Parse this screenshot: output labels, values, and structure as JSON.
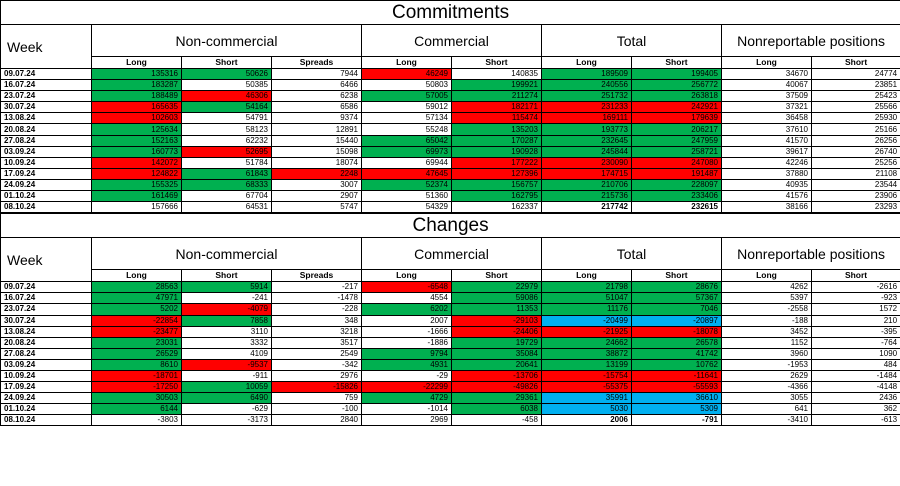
{
  "colors": {
    "green": "#00b050",
    "red": "#ff0000",
    "blue": "#00b0f0"
  },
  "commitments": {
    "title": "Commitments",
    "week_label": "Week",
    "groups": [
      "Non-commercial",
      "Commercial",
      "Total",
      "Nonreportable positions"
    ],
    "subheaders": [
      "Long",
      "Short",
      "Spreads",
      "Long",
      "Short",
      "Long",
      "Short",
      "Long",
      "Short"
    ],
    "rows": [
      {
        "week": "09.07.24",
        "v": [
          "135316",
          "50626",
          "7944",
          "46249",
          "140835",
          "189509",
          "199405",
          "34670",
          "24774"
        ],
        "hl": [
          "g",
          "g",
          "",
          "r",
          "",
          "g",
          "g",
          "",
          ""
        ]
      },
      {
        "week": "16.07.24",
        "v": [
          "183287",
          "50385",
          "6466",
          "50803",
          "199921",
          "240556",
          "256772",
          "40067",
          "23851"
        ],
        "hl": [
          "g",
          "",
          "",
          "",
          "g",
          "g",
          "g",
          "",
          ""
        ]
      },
      {
        "week": "23.07.24",
        "v": [
          "188489",
          "46306",
          "6238",
          "57005",
          "211274",
          "251732",
          "263818",
          "37509",
          "25423"
        ],
        "hl": [
          "g",
          "r",
          "",
          "g",
          "g",
          "g",
          "g",
          "",
          ""
        ]
      },
      {
        "week": "30.07.24",
        "v": [
          "165635",
          "54164",
          "6586",
          "59012",
          "182171",
          "231233",
          "242921",
          "37321",
          "25566"
        ],
        "hl": [
          "r",
          "g",
          "",
          "",
          "r",
          "r",
          "r",
          "",
          ""
        ]
      },
      {
        "week": "13.08.24",
        "v": [
          "102603",
          "54791",
          "9374",
          "57134",
          "115474",
          "169111",
          "179639",
          "36458",
          "25930"
        ],
        "hl": [
          "r",
          "",
          "",
          "",
          "r",
          "r",
          "r",
          "",
          ""
        ]
      },
      {
        "week": "20.08.24",
        "v": [
          "125634",
          "58123",
          "12891",
          "55248",
          "135203",
          "193773",
          "206217",
          "37610",
          "25166"
        ],
        "hl": [
          "g",
          "",
          "",
          "",
          "g",
          "g",
          "g",
          "",
          ""
        ]
      },
      {
        "week": "27.08.24",
        "v": [
          "152163",
          "62232",
          "15440",
          "65042",
          "170287",
          "232645",
          "247959",
          "41570",
          "26256"
        ],
        "hl": [
          "g",
          "",
          "",
          "g",
          "g",
          "g",
          "g",
          "",
          ""
        ]
      },
      {
        "week": "03.09.24",
        "v": [
          "160773",
          "52695",
          "15098",
          "69973",
          "190928",
          "245844",
          "258721",
          "39617",
          "26740"
        ],
        "hl": [
          "g",
          "r",
          "",
          "g",
          "g",
          "g",
          "g",
          "",
          ""
        ]
      },
      {
        "week": "10.09.24",
        "v": [
          "142072",
          "51784",
          "18074",
          "69944",
          "177222",
          "230090",
          "247080",
          "42246",
          "25256"
        ],
        "hl": [
          "r",
          "",
          "",
          "",
          "r",
          "r",
          "r",
          "",
          ""
        ]
      },
      {
        "week": "17.09.24",
        "v": [
          "124822",
          "61843",
          "2248",
          "47645",
          "127396",
          "174715",
          "191487",
          "37880",
          "21108"
        ],
        "hl": [
          "r",
          "g",
          "r",
          "r",
          "r",
          "r",
          "r",
          "",
          ""
        ]
      },
      {
        "week": "24.09.24",
        "v": [
          "155325",
          "68333",
          "3007",
          "52374",
          "156757",
          "210706",
          "228097",
          "40935",
          "23544"
        ],
        "hl": [
          "g",
          "g",
          "",
          "g",
          "g",
          "g",
          "g",
          "",
          ""
        ]
      },
      {
        "week": "01.10.24",
        "v": [
          "161469",
          "67704",
          "2907",
          "51360",
          "162795",
          "215736",
          "233406",
          "41576",
          "23906"
        ],
        "hl": [
          "g",
          "",
          "",
          "",
          "g",
          "g",
          "g",
          "",
          ""
        ]
      },
      {
        "week": "08.10.24",
        "v": [
          "157666",
          "64531",
          "5747",
          "54329",
          "162337",
          "217742",
          "232615",
          "38166",
          "23293"
        ],
        "hl": [
          "",
          "",
          "",
          "",
          "",
          "",
          "",
          "",
          ""
        ],
        "bold": [
          5,
          6
        ]
      }
    ]
  },
  "changes": {
    "title": "Changes",
    "week_label": "Week",
    "groups": [
      "Non-commercial",
      "Commercial",
      "Total",
      "Nonreportable positions"
    ],
    "subheaders": [
      "Long",
      "Short",
      "Spreads",
      "Long",
      "Short",
      "Long",
      "Short",
      "Long",
      "Short"
    ],
    "rows": [
      {
        "week": "09.07.24",
        "v": [
          "28563",
          "5914",
          "-217",
          "-6548",
          "22979",
          "21798",
          "28676",
          "4262",
          "-2616"
        ],
        "hl": [
          "g",
          "g",
          "",
          "r",
          "g",
          "g",
          "g",
          "",
          ""
        ]
      },
      {
        "week": "16.07.24",
        "v": [
          "47971",
          "-241",
          "-1478",
          "4554",
          "59086",
          "51047",
          "57367",
          "5397",
          "-923"
        ],
        "hl": [
          "g",
          "",
          "",
          "",
          "g",
          "g",
          "g",
          "",
          ""
        ]
      },
      {
        "week": "23.07.24",
        "v": [
          "5202",
          "-4079",
          "-228",
          "6202",
          "11353",
          "11176",
          "7046",
          "-2558",
          "1572"
        ],
        "hl": [
          "g",
          "r",
          "",
          "g",
          "g",
          "g",
          "g",
          "",
          ""
        ]
      },
      {
        "week": "30.07.24",
        "v": [
          "-22854",
          "7858",
          "348",
          "2007",
          "-29103",
          "-20499",
          "-20897",
          "-188",
          "210"
        ],
        "hl": [
          "r",
          "g",
          "",
          "",
          "r",
          "c",
          "c",
          "",
          ""
        ]
      },
      {
        "week": "13.08.24",
        "v": [
          "-23477",
          "3110",
          "3218",
          "-1666",
          "-24406",
          "-21925",
          "-18078",
          "3452",
          "-395"
        ],
        "hl": [
          "r",
          "",
          "",
          "",
          "r",
          "r",
          "r",
          "",
          ""
        ]
      },
      {
        "week": "20.08.24",
        "v": [
          "23031",
          "3332",
          "3517",
          "-1886",
          "19729",
          "24662",
          "26578",
          "1152",
          "-764"
        ],
        "hl": [
          "g",
          "",
          "",
          "",
          "g",
          "g",
          "g",
          "",
          ""
        ]
      },
      {
        "week": "27.08.24",
        "v": [
          "26529",
          "4109",
          "2549",
          "9794",
          "35084",
          "38872",
          "41742",
          "3960",
          "1090"
        ],
        "hl": [
          "g",
          "",
          "",
          "g",
          "g",
          "g",
          "g",
          "",
          ""
        ]
      },
      {
        "week": "03.09.24",
        "v": [
          "8610",
          "-9537",
          "-342",
          "4931",
          "20641",
          "13199",
          "10762",
          "-1953",
          "484"
        ],
        "hl": [
          "g",
          "r",
          "",
          "g",
          "g",
          "g",
          "g",
          "",
          ""
        ]
      },
      {
        "week": "10.09.24",
        "v": [
          "-18701",
          "-911",
          "2976",
          "-29",
          "-13706",
          "-15754",
          "-11641",
          "2629",
          "-1484"
        ],
        "hl": [
          "r",
          "",
          "",
          "",
          "r",
          "r",
          "r",
          "",
          ""
        ]
      },
      {
        "week": "17.09.24",
        "v": [
          "-17250",
          "10059",
          "-15826",
          "-22299",
          "-49826",
          "-55375",
          "-55593",
          "-4366",
          "-4148"
        ],
        "hl": [
          "r",
          "g",
          "r",
          "r",
          "r",
          "r",
          "r",
          "",
          ""
        ]
      },
      {
        "week": "24.09.24",
        "v": [
          "30503",
          "6490",
          "759",
          "4729",
          "29361",
          "35991",
          "36610",
          "3055",
          "2436"
        ],
        "hl": [
          "g",
          "g",
          "",
          "g",
          "g",
          "c",
          "c",
          "",
          ""
        ]
      },
      {
        "week": "01.10.24",
        "v": [
          "6144",
          "-629",
          "-100",
          "-1014",
          "6038",
          "5030",
          "5309",
          "641",
          "362"
        ],
        "hl": [
          "g",
          "",
          "",
          "",
          "g",
          "c",
          "c",
          "",
          ""
        ]
      },
      {
        "week": "08.10.24",
        "v": [
          "-3803",
          "-3173",
          "2840",
          "2969",
          "-458",
          "2006",
          "-791",
          "-3410",
          "-613"
        ],
        "hl": [
          "",
          "",
          "",
          "",
          "",
          "",
          "",
          "",
          ""
        ],
        "bold": [
          5,
          6
        ]
      }
    ]
  }
}
